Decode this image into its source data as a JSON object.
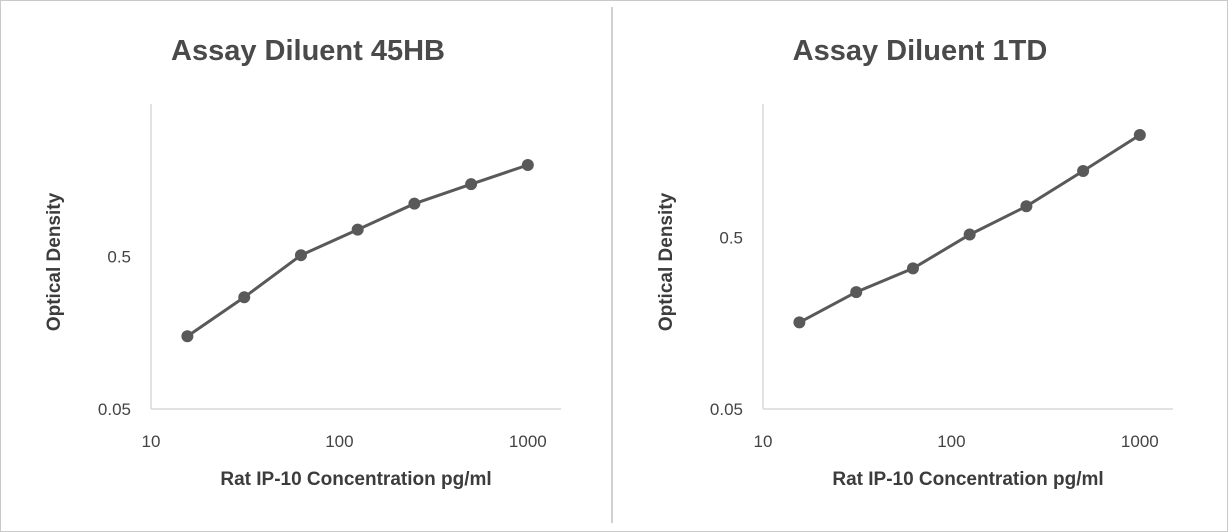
{
  "chart_data": [
    {
      "type": "line",
      "title": "Assay Diluent 45HB",
      "xlabel": "Rat IP-10 Concentration pg/ml",
      "ylabel": "Optical Density",
      "x_scale": "log",
      "y_scale": "log",
      "xlim": [
        10,
        1500
      ],
      "ylim": [
        0.05,
        5
      ],
      "x_ticks": [
        10,
        100,
        1000
      ],
      "x_tick_labels": [
        "10",
        "100",
        "1000"
      ],
      "y_ticks": [
        0.05,
        0.5
      ],
      "y_tick_labels": [
        "0.05",
        "0.5"
      ],
      "grid": false,
      "series": [
        {
          "x": [
            15.6,
            31.25,
            62.5,
            125,
            250,
            500,
            1000
          ],
          "y": [
            0.15,
            0.27,
            0.51,
            0.75,
            1.11,
            1.49,
            1.99
          ]
        }
      ]
    },
    {
      "type": "line",
      "title": "Assay Diluent 1TD",
      "xlabel": "Rat IP-10 Concentration pg/ml",
      "ylabel": "Optical Density",
      "x_scale": "log",
      "y_scale": "log",
      "xlim": [
        10,
        1500
      ],
      "ylim": [
        0.05,
        3
      ],
      "x_ticks": [
        10,
        100,
        1000
      ],
      "x_tick_labels": [
        "10",
        "100",
        "1000"
      ],
      "y_ticks": [
        0.05,
        0.5
      ],
      "y_tick_labels": [
        "0.05",
        "0.5"
      ],
      "grid": false,
      "series": [
        {
          "x": [
            15.6,
            31.25,
            62.5,
            125,
            250,
            500,
            1000
          ],
          "y": [
            0.16,
            0.24,
            0.33,
            0.52,
            0.76,
            1.22,
            1.98
          ]
        }
      ]
    }
  ]
}
